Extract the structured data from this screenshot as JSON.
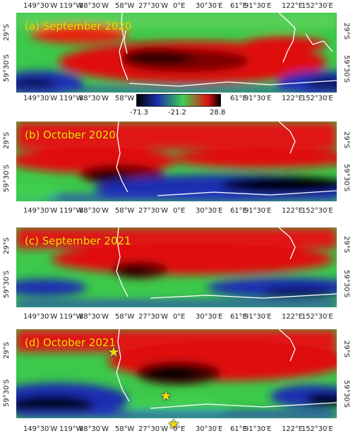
{
  "panels": [
    {
      "label": "(a)  September 2020"
    },
    {
      "label": "(b)   October 2020"
    },
    {
      "label": "(c)  September 2021"
    },
    {
      "label": "(d)   October 2021"
    }
  ],
  "axis": {
    "lon_ticks_full": [
      "149°30′W",
      "119°W",
      "88°30′W",
      "58°W",
      "27°30′W",
      "0°E",
      "30°30′E",
      "61°E",
      "91°30′E",
      "122°E",
      "152°30′E"
    ],
    "lon_ticks_split_left": [
      "149°30′W",
      "119°W",
      "88°30′W",
      "58°W"
    ],
    "lon_ticks_split_right": [
      "61°E",
      "91°30′E",
      "122°E",
      "152°30′E"
    ],
    "lat_ticks": [
      "29°S",
      "59°30′S"
    ]
  },
  "colorbar": {
    "ticks": [
      "-71.3",
      "-21.2",
      "28.8"
    ],
    "colors": [
      "#000000",
      "#1a2fb0",
      "#3fd050",
      "#e01010",
      "#000000"
    ]
  },
  "markers": {
    "icon": "star-icon",
    "color": "#f5d700"
  }
}
